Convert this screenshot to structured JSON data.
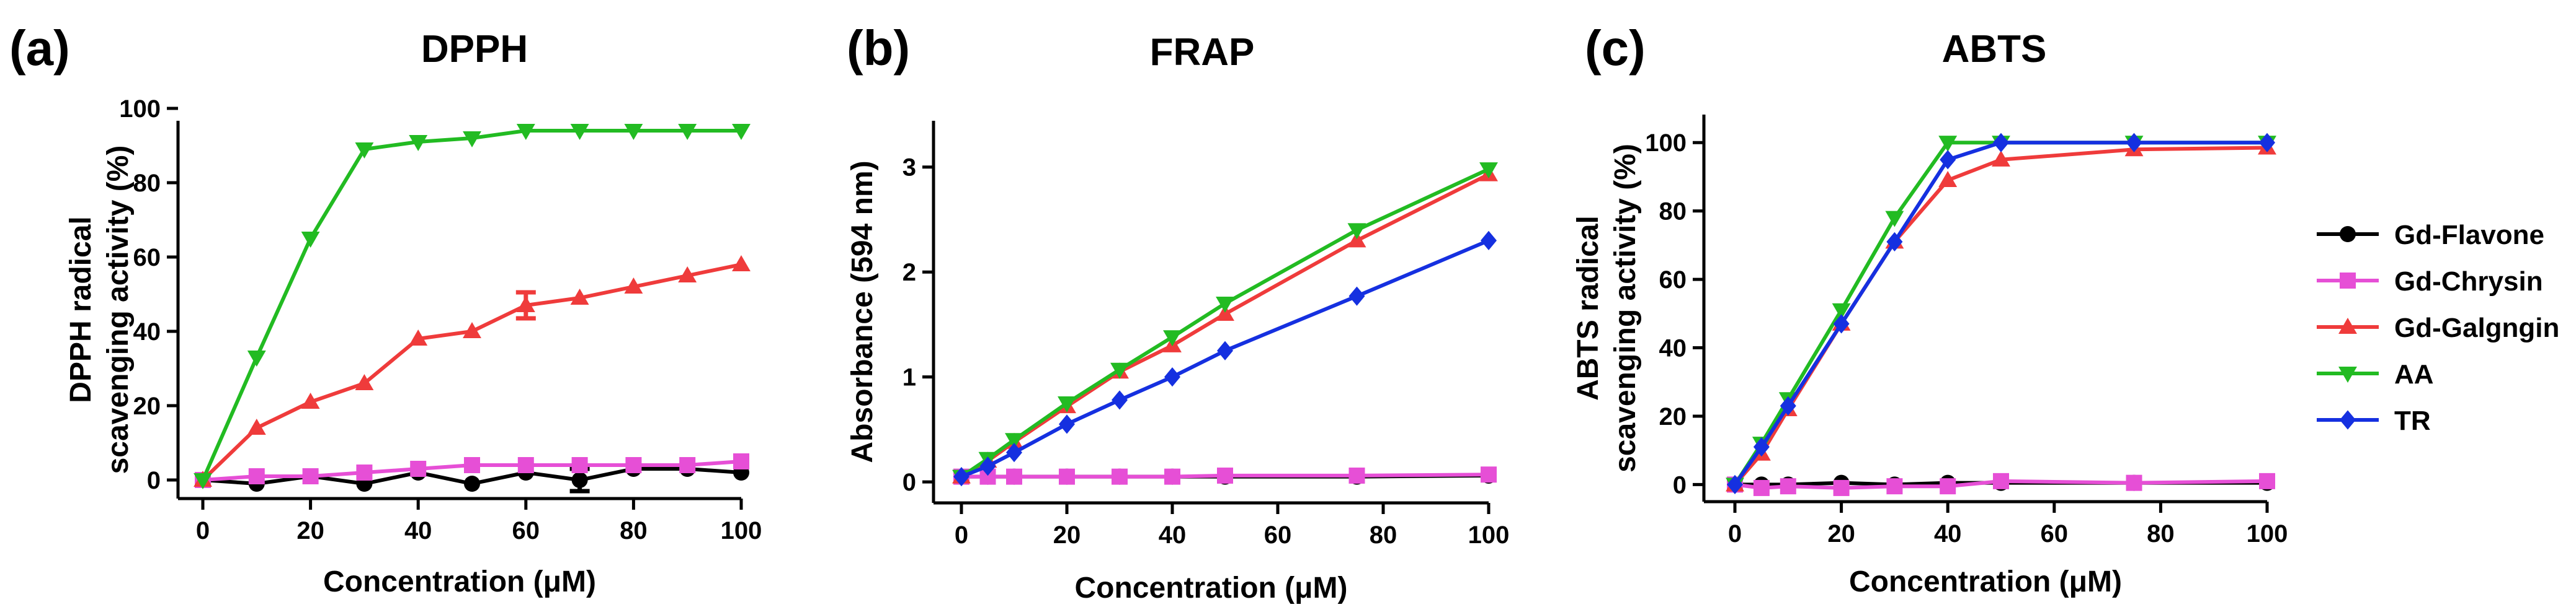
{
  "chart_data": [
    {
      "type": "line",
      "panel_letter": "(a)",
      "title": "DPPH",
      "xlabel": "Concentration (μM)",
      "ylabel": [
        "DPPH radical",
        "scavenging activity (%)"
      ],
      "xlim": [
        0,
        100
      ],
      "ylim": [
        -5,
        100
      ],
      "xticks": [
        0,
        20,
        40,
        60,
        80,
        100
      ],
      "yticks": [
        0,
        20,
        40,
        60,
        80,
        100
      ],
      "x": [
        0,
        10,
        20,
        30,
        40,
        50,
        60,
        70,
        80,
        90,
        100
      ],
      "series": [
        {
          "name": "Gd-Flavone",
          "values": [
            0,
            -1,
            1,
            -1,
            2,
            -1,
            2,
            0,
            3,
            3,
            2
          ],
          "error": [
            0,
            0,
            0,
            0,
            0,
            0,
            0,
            3,
            0,
            0,
            0
          ]
        },
        {
          "name": "Gd-Chrysin",
          "values": [
            0,
            1,
            1,
            2,
            3,
            4,
            4,
            4,
            4,
            4,
            5
          ]
        },
        {
          "name": "Gd-Galgngin",
          "values": [
            0,
            14,
            21,
            26,
            38,
            40,
            47,
            49,
            52,
            55,
            58
          ],
          "error": [
            0,
            0,
            0,
            0,
            0,
            0,
            3.5,
            0,
            0,
            0,
            0
          ]
        },
        {
          "name": "AA",
          "values": [
            0,
            33,
            65,
            89,
            91,
            92,
            94,
            94,
            94,
            94,
            94
          ]
        }
      ]
    },
    {
      "type": "line",
      "panel_letter": "(b)",
      "title": "FRAP",
      "xlabel": "Concentration (μM)",
      "ylabel": [
        "Absorbance (594 nm)"
      ],
      "xlim": [
        0,
        100
      ],
      "ylim": [
        -0.2,
        3.5
      ],
      "xticks": [
        0,
        20,
        40,
        60,
        80,
        100
      ],
      "yticks": [
        0,
        1,
        2,
        3
      ],
      "x": [
        0,
        5,
        10,
        20,
        30,
        40,
        50,
        75,
        100
      ],
      "series": [
        {
          "name": "Gd-Flavone",
          "values": [
            0.05,
            0.05,
            0.05,
            0.05,
            0.05,
            0.05,
            0.05,
            0.05,
            0.06
          ]
        },
        {
          "name": "Gd-Chrysin",
          "values": [
            0.05,
            0.05,
            0.05,
            0.05,
            0.05,
            0.05,
            0.06,
            0.06,
            0.07
          ]
        },
        {
          "name": "Gd-Galgngin",
          "values": [
            0.05,
            0.2,
            0.38,
            0.72,
            1.05,
            1.3,
            1.6,
            2.3,
            2.93
          ]
        },
        {
          "name": "AA",
          "values": [
            0.05,
            0.22,
            0.4,
            0.75,
            1.07,
            1.38,
            1.7,
            2.4,
            2.98
          ]
        },
        {
          "name": "TR",
          "values": [
            0.05,
            0.15,
            0.28,
            0.55,
            0.78,
            1.0,
            1.25,
            1.77,
            2.3
          ]
        }
      ]
    },
    {
      "type": "line",
      "panel_letter": "(c)",
      "title": "ABTS",
      "xlabel": "Concentration (μM)",
      "ylabel": [
        "ABTS radical",
        "scavenging activity (%)"
      ],
      "xlim": [
        0,
        100
      ],
      "ylim": [
        -5,
        110
      ],
      "xticks": [
        0,
        20,
        40,
        60,
        80,
        100
      ],
      "yticks": [
        0,
        20,
        40,
        60,
        80,
        100
      ],
      "x": [
        0,
        5,
        10,
        20,
        30,
        40,
        50,
        75,
        100
      ],
      "series": [
        {
          "name": "Gd-Flavone",
          "values": [
            0,
            0,
            0,
            0.5,
            0,
            0.5,
            0.5,
            0.5,
            0.5
          ]
        },
        {
          "name": "Gd-Chrysin",
          "values": [
            0,
            -1,
            -0.5,
            -1,
            -0.5,
            -0.5,
            1,
            0.5,
            1
          ]
        },
        {
          "name": "Gd-Galgngin",
          "values": [
            0,
            9,
            22,
            47,
            71,
            89,
            95,
            98,
            98.5
          ]
        },
        {
          "name": "AA",
          "values": [
            0,
            12,
            25,
            51,
            78,
            100,
            100,
            100,
            100
          ]
        },
        {
          "name": "TR",
          "values": [
            0,
            11,
            23,
            47,
            71,
            95,
            100,
            100,
            100
          ]
        }
      ]
    }
  ],
  "legend": {
    "placement": "right",
    "entries": [
      {
        "name": "Gd-Flavone",
        "color": "#000000",
        "marker": "circle"
      },
      {
        "name": "Gd-Chrysin",
        "color": "#e64fd6",
        "marker": "square"
      },
      {
        "name": "Gd-Galgngin",
        "color": "#ef3b3b",
        "marker": "triangle-up"
      },
      {
        "name": "AA",
        "color": "#22bb22",
        "marker": "triangle-down"
      },
      {
        "name": "TR",
        "color": "#1530e0",
        "marker": "diamond"
      }
    ]
  },
  "colors": {
    "Gd-Flavone": "#000000",
    "Gd-Chrysin": "#e64fd6",
    "Gd-Galgngin": "#ef3b3b",
    "AA": "#22bb22",
    "TR": "#1530e0"
  }
}
